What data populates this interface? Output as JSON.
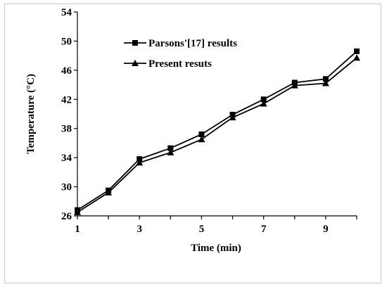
{
  "chart_data": {
    "type": "line",
    "x": [
      1,
      2,
      3,
      4,
      5,
      6,
      7,
      8,
      9,
      10
    ],
    "series": [
      {
        "name": "Parsons'[17] results",
        "marker": "square",
        "values": [
          26.8,
          29.5,
          33.8,
          35.3,
          37.2,
          39.9,
          42.0,
          44.3,
          44.8,
          48.6
        ]
      },
      {
        "name": "Present resuts",
        "marker": "triangle",
        "values": [
          26.5,
          29.2,
          33.3,
          34.7,
          36.5,
          39.5,
          41.4,
          43.9,
          44.2,
          47.7
        ]
      }
    ],
    "xlabel": "Time (min)",
    "ylabel": "Temperature (°C)",
    "xlim": [
      1,
      10
    ],
    "ylim": [
      26,
      54
    ],
    "xticks": [
      "1",
      "3",
      "5",
      "7",
      "9"
    ],
    "yticks": [
      "26",
      "30",
      "34",
      "38",
      "42",
      "46",
      "50",
      "54"
    ],
    "grid": false,
    "legend_position": "top-center",
    "line_color": "#000000"
  }
}
